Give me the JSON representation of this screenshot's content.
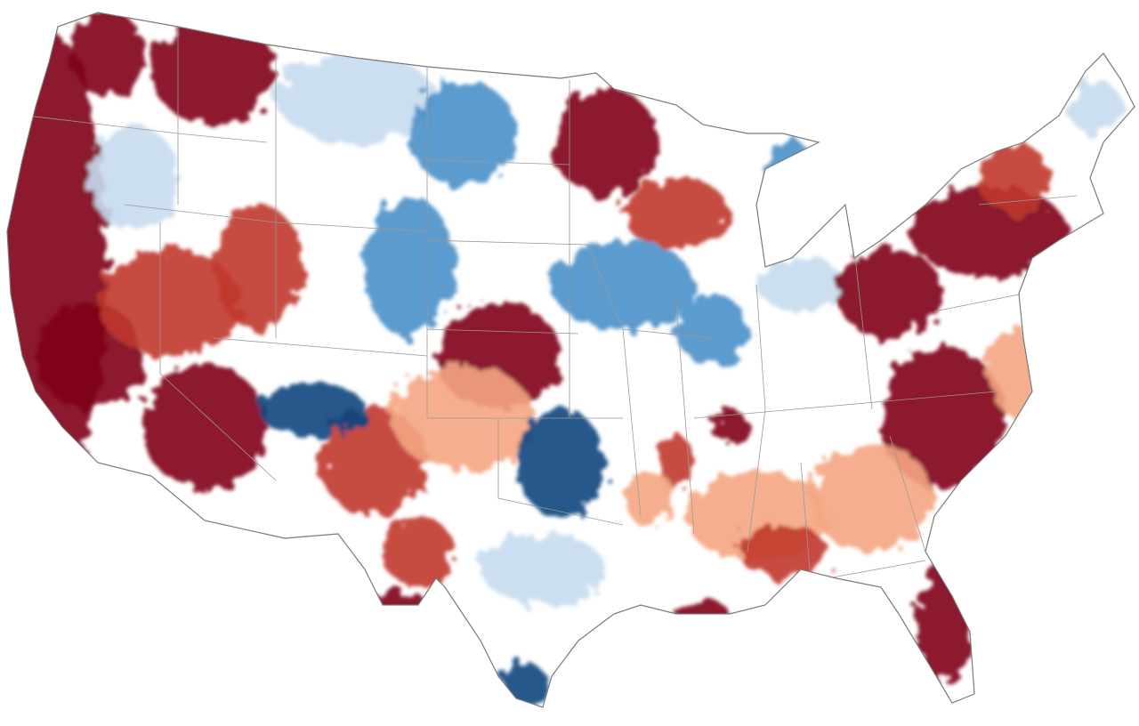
{
  "map": {
    "region": "contiguous-united-states",
    "color_scale": {
      "strong_positive": "#7f0019",
      "positive": "#c0392b",
      "mild_positive": "#f4a582",
      "neutral": "#ffffff",
      "mild_negative": "#c6dbef",
      "negative": "#4a90c8",
      "strong_negative": "#08457e"
    },
    "boundary_color": "#9a9a9a",
    "background": "#ffffff"
  }
}
